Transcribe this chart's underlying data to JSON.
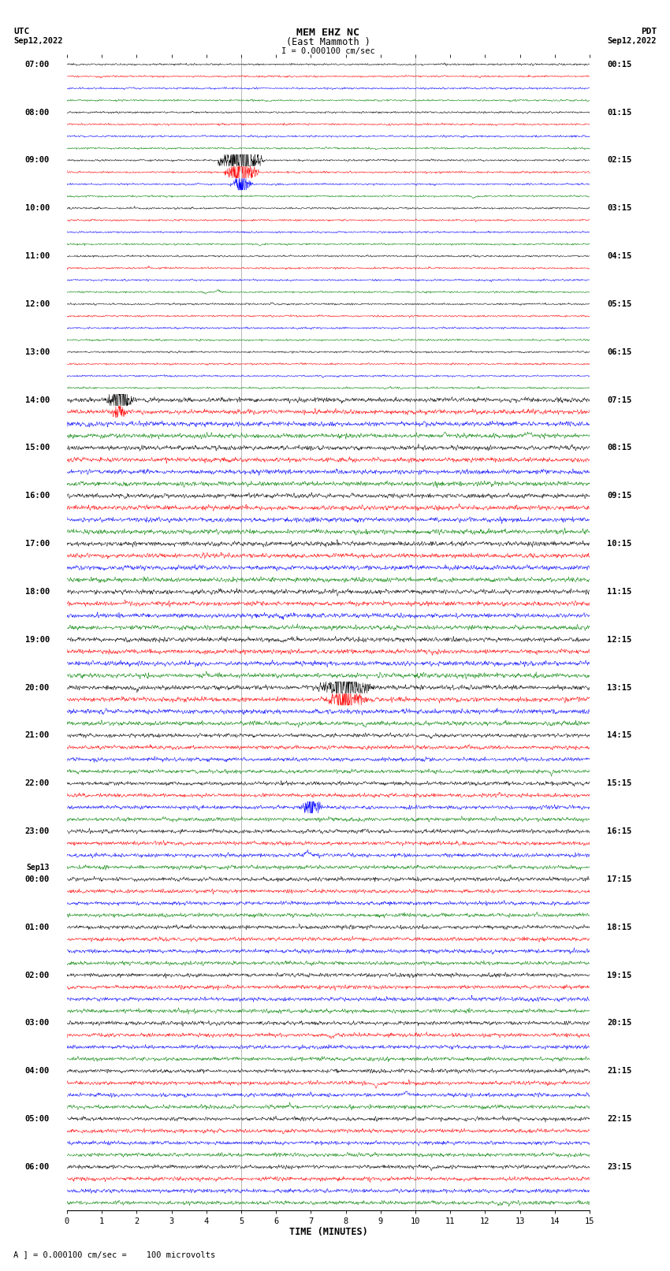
{
  "title_line1": "MEM EHZ NC",
  "title_line2": "(East Mammoth )",
  "scale_text": "I = 0.000100 cm/sec",
  "utc_label": "UTC",
  "utc_date": "Sep12,2022",
  "pdt_label": "PDT",
  "pdt_date": "Sep12,2022",
  "xlabel": "TIME (MINUTES)",
  "footer": "A ] = 0.000100 cm/sec =    100 microvolts",
  "xlim": [
    0,
    15
  ],
  "x_ticks": [
    0,
    1,
    2,
    3,
    4,
    5,
    6,
    7,
    8,
    9,
    10,
    11,
    12,
    13,
    14,
    15
  ],
  "trace_colors": [
    "black",
    "red",
    "blue",
    "green"
  ],
  "utc_labels": [
    [
      "07:00",
      0
    ],
    [
      "08:00",
      4
    ],
    [
      "09:00",
      8
    ],
    [
      "10:00",
      12
    ],
    [
      "11:00",
      16
    ],
    [
      "12:00",
      20
    ],
    [
      "13:00",
      24
    ],
    [
      "14:00",
      28
    ],
    [
      "15:00",
      32
    ],
    [
      "16:00",
      36
    ],
    [
      "17:00",
      40
    ],
    [
      "18:00",
      44
    ],
    [
      "19:00",
      48
    ],
    [
      "20:00",
      52
    ],
    [
      "21:00",
      56
    ],
    [
      "22:00",
      60
    ],
    [
      "23:00",
      64
    ],
    [
      "Sep13",
      67
    ],
    [
      "00:00",
      68
    ],
    [
      "01:00",
      72
    ],
    [
      "02:00",
      76
    ],
    [
      "03:00",
      80
    ],
    [
      "04:00",
      84
    ],
    [
      "05:00",
      88
    ],
    [
      "06:00",
      92
    ]
  ],
  "pdt_labels": [
    [
      "00:15",
      0
    ],
    [
      "01:15",
      4
    ],
    [
      "02:15",
      8
    ],
    [
      "03:15",
      12
    ],
    [
      "04:15",
      16
    ],
    [
      "05:15",
      20
    ],
    [
      "06:15",
      24
    ],
    [
      "07:15",
      28
    ],
    [
      "08:15",
      32
    ],
    [
      "09:15",
      36
    ],
    [
      "10:15",
      40
    ],
    [
      "11:15",
      44
    ],
    [
      "12:15",
      48
    ],
    [
      "13:15",
      52
    ],
    [
      "14:15",
      56
    ],
    [
      "15:15",
      60
    ],
    [
      "16:15",
      64
    ],
    [
      "17:15",
      68
    ],
    [
      "18:15",
      72
    ],
    [
      "19:15",
      76
    ],
    [
      "20:15",
      80
    ],
    [
      "21:15",
      84
    ],
    [
      "22:15",
      88
    ],
    [
      "23:15",
      92
    ]
  ],
  "n_rows": 96,
  "bg_color": "white",
  "grid_color": "#888888",
  "vgrid_minutes": [
    5,
    10
  ],
  "noise_scale_early": 0.06,
  "noise_scale_late": 0.14
}
